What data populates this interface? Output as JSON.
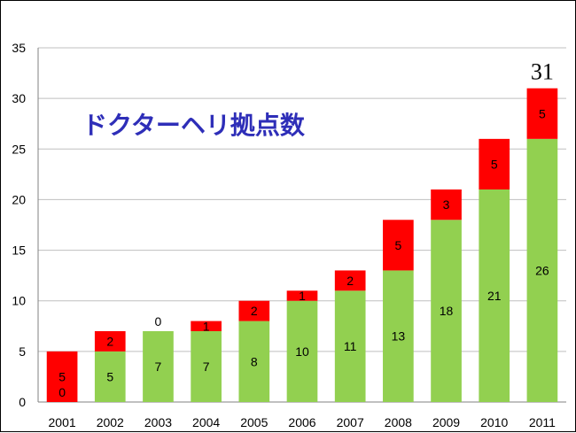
{
  "chart_data": {
    "type": "bar",
    "stacked": true,
    "title": "ドクターヘリ拠点数",
    "xlabel": "",
    "ylabel": "",
    "ylim": [
      0,
      35
    ],
    "yticks": [
      0,
      5,
      10,
      15,
      20,
      25,
      30,
      35
    ],
    "grid": true,
    "categories": [
      "2001",
      "2002",
      "2003",
      "2004",
      "2005",
      "2006",
      "2007",
      "2008",
      "2009",
      "2010",
      "2011"
    ],
    "series": [
      {
        "values": [
          0,
          5,
          7,
          7,
          8,
          10,
          11,
          13,
          18,
          21,
          26
        ],
        "color": "#92d050"
      },
      {
        "values": [
          5,
          2,
          0,
          1,
          2,
          1,
          2,
          5,
          3,
          5,
          5
        ],
        "color": "#ff0000"
      }
    ],
    "annotations": [
      {
        "category": "2011",
        "text": "31"
      }
    ]
  }
}
